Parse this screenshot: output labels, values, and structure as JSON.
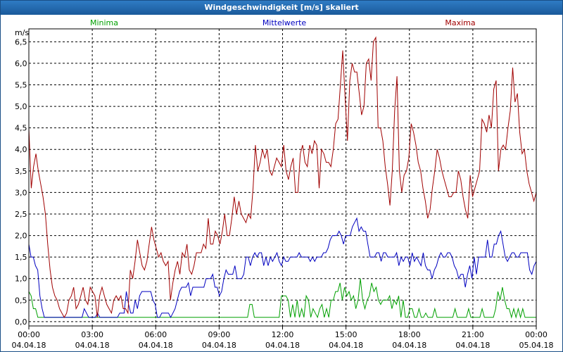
{
  "window": {
    "title": "Windgeschwindigkeit [m/s] skaliert"
  },
  "chart_data": {
    "type": "line",
    "title": "Windgeschwindigkeit [m/s] skaliert",
    "ylabel": "m/s",
    "xlabel": "",
    "ylim": [
      -0.1,
      6.8
    ],
    "xlim": [
      0,
      24
    ],
    "yticks": [
      "0,0",
      "0,5",
      "1,0",
      "1,5",
      "2,0",
      "2,5",
      "3,0",
      "3,5",
      "4,0",
      "4,5",
      "5,0",
      "5,5",
      "6,0",
      "6,5"
    ],
    "xticks": [
      {
        "time": "00:00",
        "date": "04.04.18"
      },
      {
        "time": "03:00",
        "date": "04.04.18"
      },
      {
        "time": "06:00",
        "date": "04.04.18"
      },
      {
        "time": "09:00",
        "date": "04.04.18"
      },
      {
        "time": "12:00",
        "date": "04.04.18"
      },
      {
        "time": "15:00",
        "date": "04.04.18"
      },
      {
        "time": "18:00",
        "date": "04.04.18"
      },
      {
        "time": "21:00",
        "date": "04.04.18"
      },
      {
        "time": "00:00",
        "date": "05.04.18"
      }
    ],
    "grid": true,
    "series": [
      {
        "name": "Minima",
        "color": "#00a000",
        "values": [
          0.7,
          0.6,
          0.3,
          0.3,
          0.1,
          0.1,
          0.1,
          0.1,
          0.1,
          0.1,
          0.1,
          0.1,
          0.1,
          0.1,
          0.1,
          0.1,
          0.1,
          0.1,
          0.1,
          0.1,
          0.1,
          0.1,
          0.1,
          0.1,
          0.1,
          0.1,
          0.1,
          0.1,
          0.1,
          0.1,
          0.1,
          0.1,
          0.1,
          0.1,
          0.1,
          0.1,
          0.1,
          0.1,
          0.1,
          0.1,
          0.1,
          0.1,
          0.1,
          0.1,
          0.1,
          0.1,
          0.1,
          0.1,
          0.1,
          0.1,
          0.1,
          0.1,
          0.1,
          0.1,
          0.1,
          0.1,
          0.1,
          0.1,
          0.1,
          0.1,
          0.1,
          0.1,
          0.1,
          0.1,
          0.1,
          0.1,
          0.1,
          0.1,
          0.1,
          0.1,
          0.1,
          0.1,
          0.1,
          0.1,
          0.1,
          0.1,
          0.1,
          0.1,
          0.1,
          0.1,
          0.1,
          0.1,
          0.1,
          0.1,
          0.1,
          0.1,
          0.1,
          0.1,
          0.1,
          0.1,
          0.1,
          0.1,
          0.1,
          0.1,
          0.1,
          0.1,
          0.1,
          0.1,
          0.4,
          0.4,
          0.1,
          0.1,
          0.1,
          0.1,
          0.1,
          0.1,
          0.1,
          0.1,
          0.1,
          0.1,
          0.1,
          0.1,
          0.6,
          0.6,
          0.6,
          0.5,
          0.1,
          0.4,
          0.1,
          0.5,
          0.1,
          0.3,
          0.1,
          0.6,
          0.5,
          0.1,
          0.3,
          0.2,
          0.1,
          0.3,
          0.4,
          0.1,
          0.3,
          0.1,
          0.5,
          0.5,
          0.7,
          0.7,
          0.9,
          0.5,
          0.8,
          0.6,
          0.7,
          0.5,
          0.6,
          0.3,
          0.5,
          1.0,
          0.5,
          0.3,
          0.5,
          0.6,
          0.9,
          0.7,
          0.8,
          0.5,
          0.4,
          0.5,
          0.5,
          0.5,
          0.6,
          0.3,
          0.5,
          0.4,
          0.6,
          0.1,
          0.5,
          0.1,
          0.1,
          0.3,
          0.3,
          0.1,
          0.1,
          0.3,
          0.1,
          0.1,
          0.2,
          0.1,
          0.1,
          0.1,
          0.3,
          0.1,
          0.1,
          0.1,
          0.1,
          0.1,
          0.1,
          0.1,
          0.1,
          0.3,
          0.1,
          0.1,
          0.1,
          0.1,
          0.1,
          0.3,
          0.1,
          0.1,
          0.1,
          0.1,
          0.1,
          0.3,
          0.1,
          0.1,
          0.1,
          0.1,
          0.1,
          0.3,
          0.7,
          0.5,
          0.8,
          0.5,
          0.3,
          0.3,
          0.1,
          0.3,
          0.1,
          0.3,
          0.1,
          0.3,
          0.1,
          0.1,
          0.1,
          0.1,
          0.1,
          0.1
        ]
      },
      {
        "name": "Mittelwerte",
        "color": "#0000c0",
        "values": [
          1.8,
          1.5,
          1.5,
          1.3,
          1.2,
          0.6,
          0.3,
          0.1,
          0.1,
          0.1,
          0.1,
          0.1,
          0.1,
          0.1,
          0.1,
          0.1,
          0.1,
          0.1,
          0.1,
          0.1,
          0.1,
          0.1,
          0.1,
          0.1,
          0.1,
          0.3,
          0.2,
          0.1,
          0.1,
          0.1,
          0.1,
          0.2,
          0.1,
          0.1,
          0.1,
          0.1,
          0.1,
          0.1,
          0.1,
          0.1,
          0.1,
          0.2,
          0.2,
          0.2,
          0.7,
          0.4,
          0.2,
          0.2,
          0.5,
          0.3,
          0.6,
          0.7,
          0.7,
          0.7,
          0.7,
          0.7,
          0.5,
          0.4,
          0.1,
          0.1,
          0.2,
          0.2,
          0.2,
          0.2,
          0.1,
          0.2,
          0.3,
          0.5,
          0.7,
          0.8,
          0.8,
          0.8,
          0.9,
          0.6,
          0.8,
          0.8,
          0.8,
          0.8,
          0.8,
          0.8,
          1.0,
          1.0,
          1.0,
          1.1,
          0.8,
          0.8,
          0.6,
          0.7,
          1.0,
          1.2,
          1.1,
          1.1,
          1.1,
          1.3,
          1.0,
          1.0,
          1.0,
          1.1,
          1.5,
          1.5,
          1.3,
          1.5,
          1.6,
          1.5,
          1.6,
          1.6,
          1.3,
          1.5,
          1.3,
          1.5,
          1.4,
          1.5,
          1.6,
          1.4,
          1.3,
          1.5,
          1.4,
          1.4,
          1.5,
          1.5,
          1.5,
          1.5,
          1.6,
          1.5,
          1.5,
          1.5,
          1.5,
          1.4,
          1.5,
          1.4,
          1.5,
          1.5,
          1.5,
          1.6,
          1.6,
          1.7,
          1.9,
          2.0,
          2.0,
          2.0,
          2.1,
          2.0,
          1.8,
          2.0,
          2.0,
          2.0,
          2.2,
          2.3,
          2.4,
          2.1,
          2.2,
          2.1,
          2.1,
          1.8,
          1.5,
          1.5,
          1.5,
          1.6,
          1.6,
          1.4,
          1.6,
          1.6,
          1.5,
          1.5,
          1.5,
          1.5,
          1.6,
          1.3,
          1.5,
          1.4,
          1.5,
          1.5,
          1.3,
          1.6,
          1.4,
          1.5,
          1.4,
          1.3,
          1.6,
          1.3,
          1.2,
          1.2,
          1.0,
          1.2,
          1.3,
          1.5,
          1.6,
          1.5,
          1.5,
          1.6,
          1.6,
          1.5,
          1.3,
          1.2,
          1.0,
          1.1,
          1.1,
          0.8,
          1.1,
          1.3,
          1.0,
          1.5,
          1.1,
          1.5,
          1.5,
          1.5,
          1.5,
          1.9,
          1.5,
          1.5,
          1.8,
          1.8,
          2.0,
          2.1,
          1.8,
          1.5,
          1.4,
          1.5,
          1.6,
          1.6,
          1.5,
          1.5,
          1.6,
          1.6,
          1.6,
          1.6,
          1.2,
          1.1,
          1.3,
          1.4
        ]
      },
      {
        "name": "Maxima",
        "color": "#a00000",
        "values": [
          4.5,
          3.1,
          3.6,
          3.9,
          3.5,
          3.2,
          2.9,
          2.5,
          1.8,
          1.2,
          0.8,
          0.6,
          0.5,
          0.3,
          0.2,
          0.1,
          0.2,
          0.5,
          0.6,
          0.8,
          0.3,
          0.4,
          0.6,
          0.8,
          0.5,
          0.4,
          0.8,
          0.7,
          0.6,
          0.1,
          0.6,
          0.8,
          0.6,
          0.4,
          0.3,
          0.2,
          0.5,
          0.6,
          0.5,
          0.6,
          0.3,
          0.3,
          0.2,
          1.2,
          1.0,
          1.4,
          1.9,
          1.6,
          1.3,
          1.2,
          1.4,
          1.8,
          2.2,
          1.9,
          1.7,
          1.5,
          1.6,
          1.4,
          1.3,
          1.4,
          0.5,
          0.9,
          1.2,
          1.4,
          1.1,
          1.6,
          1.5,
          1.8,
          1.2,
          1.1,
          1.3,
          1.6,
          1.6,
          1.6,
          1.8,
          1.7,
          2.4,
          1.8,
          1.8,
          2.1,
          2.0,
          1.8,
          2.1,
          2.5,
          2.0,
          2.0,
          2.4,
          2.9,
          2.5,
          2.8,
          2.5,
          2.4,
          2.3,
          2.5,
          2.4,
          3.1,
          4.1,
          3.5,
          3.7,
          4.0,
          3.8,
          4.0,
          3.5,
          3.4,
          3.6,
          3.8,
          3.7,
          3.6,
          4.1,
          3.5,
          3.3,
          3.6,
          3.8,
          3.0,
          3.0,
          3.9,
          4.1,
          3.7,
          3.6,
          4.1,
          3.9,
          4.2,
          4.1,
          3.1,
          4.0,
          3.9,
          3.7,
          3.7,
          3.6,
          4.0,
          4.6,
          4.7,
          5.5,
          6.3,
          5.2,
          4.2,
          5.6,
          6.0,
          5.8,
          5.8,
          5.3,
          4.8,
          5.0,
          6.0,
          6.1,
          5.6,
          6.5,
          6.6,
          4.5,
          4.5,
          4.2,
          3.6,
          3.2,
          2.7,
          3.5,
          4.9,
          5.7,
          3.5,
          3.0,
          3.4,
          3.5,
          3.8,
          4.6,
          4.4,
          4.1,
          3.7,
          3.5,
          3.1,
          2.8,
          2.4,
          2.6,
          3.1,
          3.5,
          4.0,
          3.8,
          3.5,
          3.3,
          3.1,
          2.9,
          2.9,
          3.0,
          3.0,
          3.5,
          3.3,
          2.9,
          2.6,
          2.4,
          3.4,
          2.9,
          3.1,
          3.3,
          3.5,
          4.7,
          4.6,
          4.4,
          4.8,
          4.5,
          5.4,
          5.6,
          3.5,
          4.0,
          4.1,
          4.0,
          4.5,
          4.9,
          5.9,
          5.1,
          5.3,
          4.4,
          3.9,
          4.0,
          3.5,
          3.2,
          3.0,
          2.8,
          3.0
        ]
      }
    ]
  }
}
